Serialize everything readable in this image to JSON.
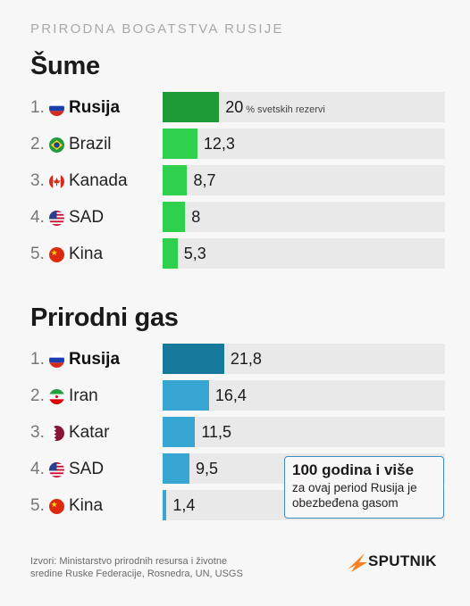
{
  "kicker": "PRIRODNA BOGATSTVA RUSIJE",
  "colors": {
    "forest_first": "#1d9a35",
    "forest_other": "#2fd04e",
    "gas_first": "#16799b",
    "gas_other": "#37a6d3",
    "track": "#e9e9e9",
    "logo_orange": "#f7801e"
  },
  "chart_data": [
    {
      "type": "bar",
      "title": "Šume",
      "categories": [
        "Rusija",
        "Brazil",
        "Kanada",
        "SAD",
        "Kina"
      ],
      "values": [
        20,
        12.3,
        8.7,
        8,
        5.3
      ],
      "value_labels": [
        "20",
        "12,3",
        "8,7",
        "8",
        "5,3"
      ],
      "unit_label": "% svetskih rezervi",
      "ranks": [
        "1.",
        "2.",
        "3.",
        "4.",
        "5."
      ],
      "flags": [
        "russia-flag-icon",
        "brazil-flag-icon",
        "canada-flag-icon",
        "usa-flag-icon",
        "china-flag-icon"
      ]
    },
    {
      "type": "bar",
      "title": "Prirodni gas",
      "categories": [
        "Rusija",
        "Iran",
        "Katar",
        "SAD",
        "Kina"
      ],
      "values": [
        21.8,
        16.4,
        11.5,
        9.5,
        1.4
      ],
      "value_labels": [
        "21,8",
        "16,4",
        "11,5",
        "9,5",
        "1,4"
      ],
      "ranks": [
        "1.",
        "2.",
        "3.",
        "4.",
        "5."
      ],
      "flags": [
        "russia-flag-icon",
        "iran-flag-icon",
        "qatar-flag-icon",
        "usa-flag-icon",
        "china-flag-icon"
      ]
    }
  ],
  "note": {
    "title": "100 godina i više",
    "text": "za ovaj period Rusija je obezbeđena gasom"
  },
  "source": "Izvori: Ministarstvo prirodnih resursa i životne sredine Ruske Federacije, Rosnedra, UN, USGS",
  "logo": {
    "text": "SPUTNIK",
    "icon": "sputnik-logo-icon"
  }
}
